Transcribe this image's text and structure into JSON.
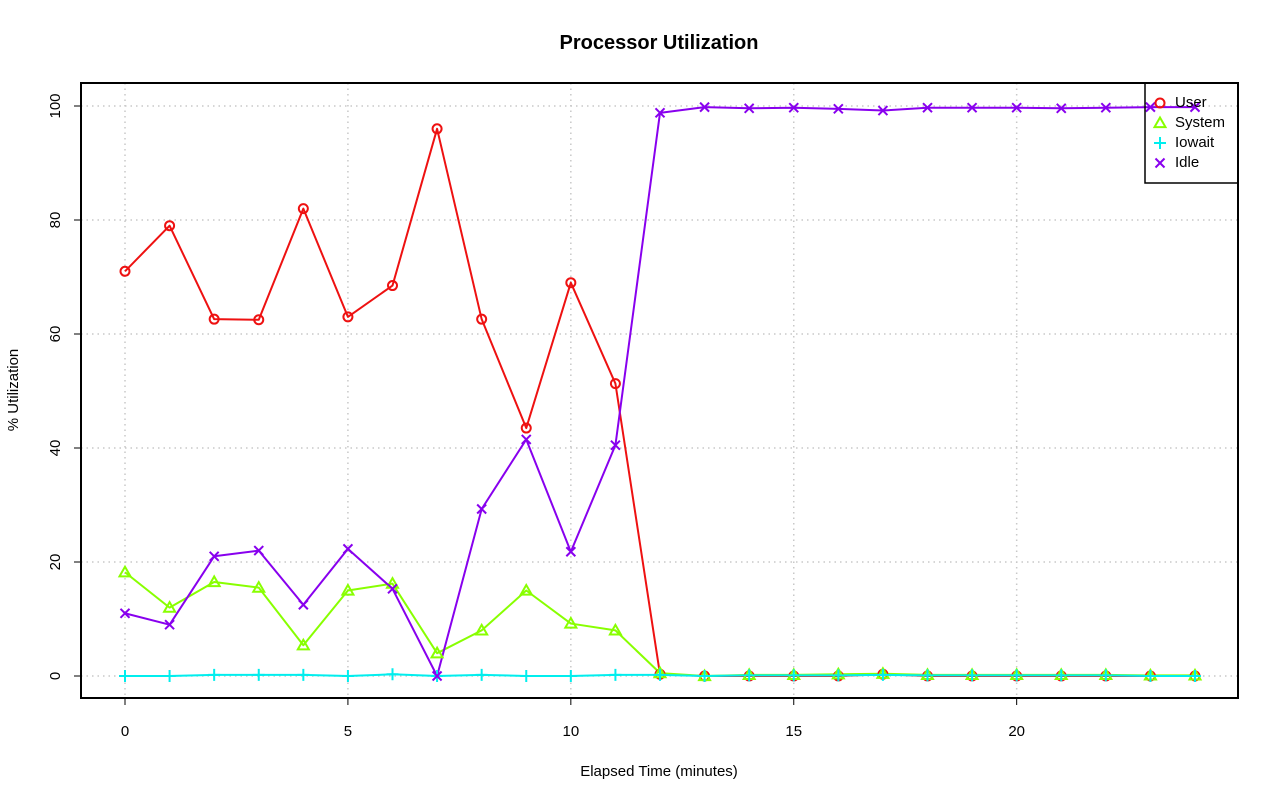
{
  "chart_data": {
    "type": "line",
    "title": "Processor Utilization",
    "xlabel": "Elapsed Time (minutes)",
    "ylabel": "% Utilization",
    "xlim": [
      0,
      24
    ],
    "ylim": [
      0,
      100
    ],
    "x_ticks": [
      0,
      5,
      10,
      15,
      20
    ],
    "y_ticks": [
      0,
      20,
      40,
      60,
      80,
      100
    ],
    "grid": true,
    "legend_position": "top-right",
    "x": [
      0,
      1,
      2,
      3,
      4,
      5,
      6,
      7,
      8,
      9,
      10,
      11,
      12,
      13,
      14,
      15,
      16,
      17,
      18,
      19,
      20,
      21,
      22,
      23,
      24
    ],
    "series": [
      {
        "name": "User",
        "color": "#ee1111",
        "marker": "circle",
        "values": [
          71,
          79,
          62.6,
          62.5,
          82,
          63,
          68.5,
          96,
          62.6,
          43.5,
          69,
          51.3,
          0.3,
          0,
          0,
          0,
          0,
          0.3,
          0,
          0,
          0,
          0,
          0,
          0,
          0
        ]
      },
      {
        "name": "System",
        "color": "#88ff00",
        "marker": "triangle",
        "values": [
          18.2,
          12,
          16.5,
          15.5,
          5.4,
          15,
          16.2,
          4,
          8,
          15,
          9.2,
          8,
          0.5,
          0,
          0.2,
          0.2,
          0.3,
          0.4,
          0.2,
          0.2,
          0.2,
          0.2,
          0.2,
          0.1,
          0.1
        ]
      },
      {
        "name": "Iowait",
        "color": "#00eeee",
        "marker": "plus",
        "values": [
          0,
          0,
          0.2,
          0.2,
          0.2,
          0,
          0.3,
          0,
          0.2,
          0,
          0,
          0.2,
          0.2,
          0,
          0.1,
          0.1,
          0.1,
          0.2,
          0.1,
          0.1,
          0.1,
          0.1,
          0.1,
          0,
          0
        ]
      },
      {
        "name": "Idle",
        "color": "#8800ee",
        "marker": "x",
        "values": [
          11,
          9,
          21,
          22,
          12.5,
          22.3,
          15.3,
          0,
          29.3,
          41.5,
          21.8,
          40.5,
          98.8,
          99.8,
          99.6,
          99.7,
          99.5,
          99.2,
          99.7,
          99.7,
          99.7,
          99.6,
          99.7,
          99.8,
          99.8
        ]
      }
    ]
  }
}
